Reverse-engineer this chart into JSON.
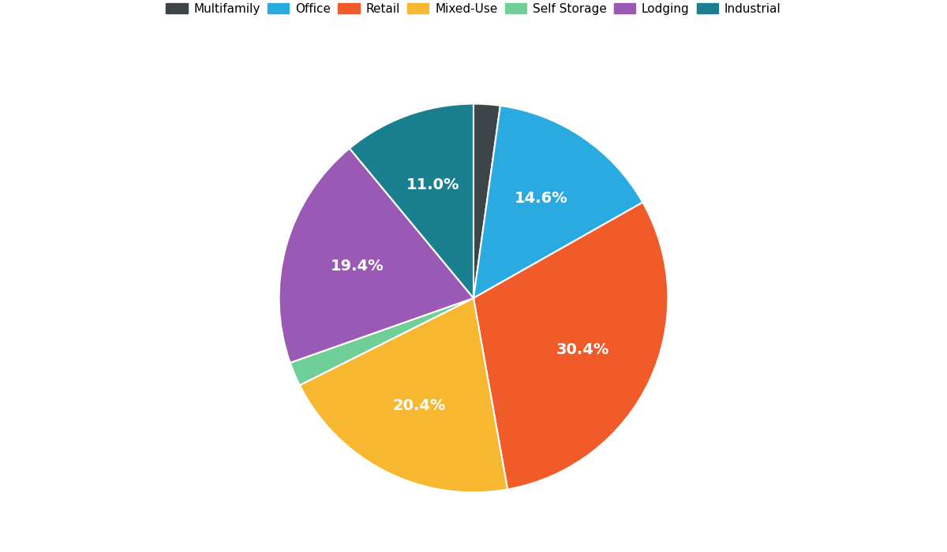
{
  "labels": [
    "Multifamily",
    "Office",
    "Retail",
    "Mixed-Use",
    "Self Storage",
    "Lodging",
    "Industrial"
  ],
  "values": [
    2.2,
    14.6,
    30.4,
    20.4,
    2.0,
    19.4,
    11.0
  ],
  "colors": [
    "#3d4549",
    "#29abe2",
    "#f15a29",
    "#f7b731",
    "#6fcf97",
    "#9b59b6",
    "#1a7f8e"
  ],
  "pct_labels": [
    "",
    "14.6%",
    "30.4%",
    "20.4%",
    "",
    "19.4%",
    "11.0%"
  ],
  "title_fontsize": 12,
  "label_fontsize": 14,
  "legend_fontsize": 11,
  "figsize": [
    12,
    7
  ],
  "dpi": 100
}
